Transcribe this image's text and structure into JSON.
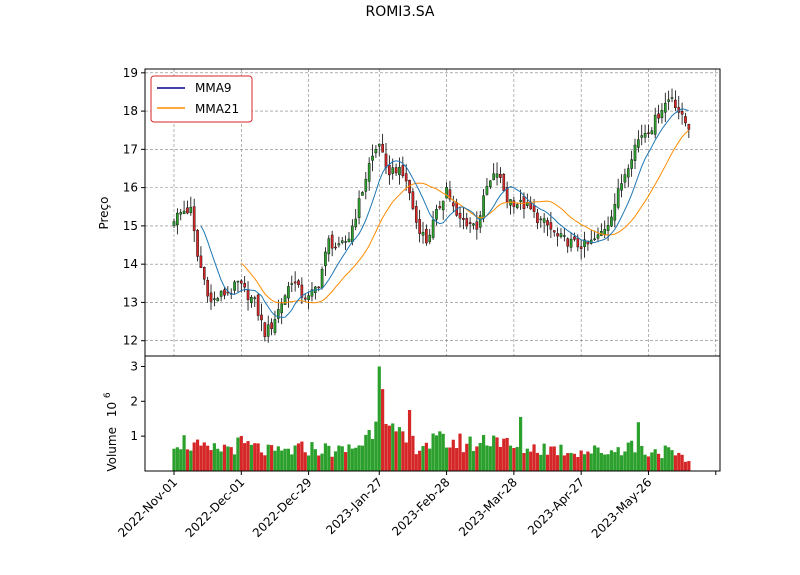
{
  "chart_data": {
    "type": "candlestick",
    "title": "ROMI3.SA",
    "price_panel": {
      "ylabel": "Preço",
      "ylim": [
        11.6,
        19.1
      ],
      "yticks": [
        12,
        13,
        14,
        15,
        16,
        17,
        18,
        19
      ],
      "grid": true,
      "legend_placement": "upper-left"
    },
    "volume_panel": {
      "ylabel": "Volume",
      "ylabel_exponent": "10",
      "ylabel_exponent_power": "6",
      "ylim": [
        0,
        3.3
      ],
      "yticks": [
        1,
        2,
        3
      ]
    },
    "xticks": [
      {
        "index": 0,
        "label": "2022-Nov-01"
      },
      {
        "index": 20,
        "label": "2022-Dec-01"
      },
      {
        "index": 40,
        "label": "2022-Dec-29"
      },
      {
        "index": 61,
        "label": "2023-Jan-27"
      },
      {
        "index": 81,
        "label": "2023-Feb-28"
      },
      {
        "index": 101,
        "label": "2023-Mar-28"
      },
      {
        "index": 121,
        "label": "2023-Apr-27"
      },
      {
        "index": 141,
        "label": "2023-May-26"
      },
      {
        "index": 161,
        "label": ""
      }
    ],
    "legend": [
      {
        "name": "MMA9",
        "color": "#00008b"
      },
      {
        "name": "MMA21",
        "color": "#ff8c00"
      }
    ],
    "colors": {
      "up": "#2ca02c",
      "down": "#d62728",
      "wick": "#000000",
      "mma9_line": "#1f77b4",
      "mma21_line": "#ff8c00",
      "legend_border": "#d62728"
    },
    "close_anchors": [
      [
        0,
        15.2
      ],
      [
        3,
        15.4
      ],
      [
        5,
        15.4
      ],
      [
        7,
        14.2
      ],
      [
        9,
        13.6
      ],
      [
        11,
        13.0
      ],
      [
        14,
        13.2
      ],
      [
        17,
        13.3
      ],
      [
        19,
        13.5
      ],
      [
        21,
        13.3
      ],
      [
        24,
        13.0
      ],
      [
        27,
        12.2
      ],
      [
        29,
        12.4
      ],
      [
        32,
        13.0
      ],
      [
        35,
        13.6
      ],
      [
        38,
        13.2
      ],
      [
        40,
        13.1
      ],
      [
        43,
        13.5
      ],
      [
        46,
        14.6
      ],
      [
        49,
        14.4
      ],
      [
        52,
        14.7
      ],
      [
        55,
        15.6
      ],
      [
        58,
        16.6
      ],
      [
        61,
        17.2
      ],
      [
        63,
        16.4
      ],
      [
        66,
        16.5
      ],
      [
        69,
        16.2
      ],
      [
        72,
        15.1
      ],
      [
        75,
        14.6
      ],
      [
        78,
        15.3
      ],
      [
        81,
        16.0
      ],
      [
        84,
        15.2
      ],
      [
        87,
        15.1
      ],
      [
        90,
        15.0
      ],
      [
        93,
        16.0
      ],
      [
        96,
        16.4
      ],
      [
        99,
        15.7
      ],
      [
        102,
        15.6
      ],
      [
        105,
        15.5
      ],
      [
        108,
        15.2
      ],
      [
        111,
        15.0
      ],
      [
        114,
        14.7
      ],
      [
        117,
        14.6
      ],
      [
        120,
        14.5
      ],
      [
        123,
        14.5
      ],
      [
        126,
        14.7
      ],
      [
        129,
        15.1
      ],
      [
        131,
        15.6
      ],
      [
        134,
        16.4
      ],
      [
        137,
        17.1
      ],
      [
        139,
        17.4
      ],
      [
        142,
        17.6
      ],
      [
        145,
        18.1
      ],
      [
        148,
        18.4
      ],
      [
        151,
        17.8
      ],
      [
        153,
        17.6
      ]
    ],
    "volume_anchors": [
      [
        0,
        1.0
      ],
      [
        10,
        0.6
      ],
      [
        20,
        0.8
      ],
      [
        30,
        0.55
      ],
      [
        40,
        0.7
      ],
      [
        50,
        0.6
      ],
      [
        55,
        0.8
      ],
      [
        58,
        1.1
      ],
      [
        61,
        2.2
      ],
      [
        64,
        1.2
      ],
      [
        68,
        0.9
      ],
      [
        72,
        0.8
      ],
      [
        80,
        0.9
      ],
      [
        90,
        0.8
      ],
      [
        95,
        1.1
      ],
      [
        100,
        0.7
      ],
      [
        110,
        0.7
      ],
      [
        120,
        0.6
      ],
      [
        130,
        0.6
      ],
      [
        135,
        0.8
      ],
      [
        140,
        0.6
      ],
      [
        146,
        0.6
      ],
      [
        150,
        0.4
      ],
      [
        153,
        0.3
      ]
    ],
    "volume_spikes": [
      [
        61,
        3.0
      ],
      [
        62,
        2.35
      ],
      [
        63,
        1.35
      ],
      [
        70,
        1.75
      ],
      [
        103,
        1.55
      ],
      [
        138,
        1.4
      ]
    ],
    "n_candles": 154
  }
}
